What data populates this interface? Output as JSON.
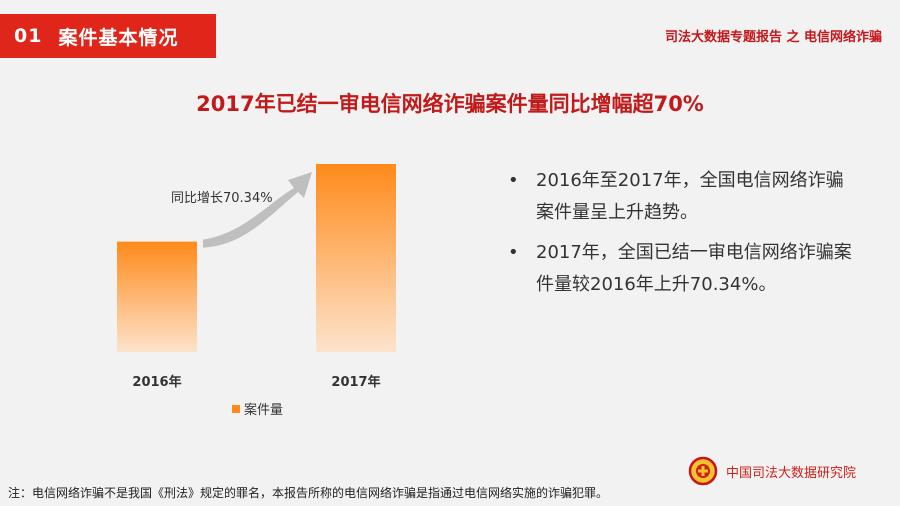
{
  "header": {
    "section_number": "01",
    "section_title": "案件基本情况",
    "report_title": "司法大数据专题报告 之 电信网络诈骗"
  },
  "slide_heading": "2017年已结一审电信网络诈骗案件量同比增幅超70%",
  "chart_data": {
    "type": "bar",
    "categories": [
      "2016年",
      "2017年"
    ],
    "series": [
      {
        "name": "案件量",
        "values": [
          100,
          170.34
        ]
      }
    ],
    "annotation": "同比增长70.34%",
    "legend_position": "bottom",
    "grid": false,
    "colors": {
      "bar_top": "#ff8a1a",
      "bar_bottom": "#fde3cc",
      "arrow": "#bfbfbf"
    }
  },
  "bullets": [
    "2016年至2017年，全国电信网络诈骗案件量呈上升趋势。",
    "2017年，全国已结一审电信网络诈骗案件量较2016年上升70.34%。"
  ],
  "footnote": "注：电信网络诈骗不是我国《刑法》规定的罪名，本报告所称的电信网络诈骗是指通过电信网络实施的诈骗犯罪。",
  "brand": {
    "name": "中国司法大数据研究院",
    "logo_icon": "court-emblem-icon"
  },
  "theme": {
    "accent": "#e0251b",
    "heading": "#c11a1a"
  }
}
